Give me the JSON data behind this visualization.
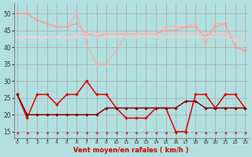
{
  "title": "",
  "xlabel": "Vent moyen/en rafales ( km/h )",
  "background_color": "#b2e0e0",
  "grid_color": "#aaaaaa",
  "ylim": [
    13,
    53
  ],
  "yticks": [
    15,
    20,
    25,
    30,
    35,
    40,
    45,
    50
  ],
  "x": [
    0,
    1,
    2,
    3,
    4,
    5,
    6,
    7,
    8,
    9,
    10,
    11,
    12,
    13,
    14,
    15,
    16,
    17,
    18,
    19,
    20,
    21,
    22,
    23
  ],
  "line_rafales_jagged": [
    26,
    19,
    26,
    26,
    23,
    26,
    26,
    30,
    26,
    26,
    22,
    19,
    19,
    19,
    22,
    22,
    15,
    15,
    26,
    26,
    22,
    26,
    26,
    22
  ],
  "line_moyen_jagged": [
    26,
    20,
    20,
    20,
    20,
    20,
    20,
    20,
    20,
    22,
    22,
    22,
    22,
    22,
    22,
    22,
    22,
    24,
    24,
    22,
    22,
    22,
    22,
    22
  ],
  "line_pink1": [
    50,
    50,
    48,
    47,
    46,
    46,
    50,
    41,
    35,
    35,
    39,
    44,
    44,
    44,
    44,
    46,
    46,
    46,
    47,
    41,
    47,
    47,
    40,
    39
  ],
  "line_pink2": [
    50,
    50,
    48,
    47,
    46,
    46,
    47,
    44,
    43,
    44,
    44,
    44,
    44,
    44,
    44,
    45,
    45,
    46,
    46,
    43,
    46,
    47,
    40,
    39
  ],
  "line_pink3": [
    43,
    43,
    43,
    43,
    43,
    43,
    44,
    44,
    44,
    44,
    44,
    44,
    44,
    44,
    44,
    44,
    44,
    44,
    44,
    44,
    44,
    44,
    43,
    43
  ],
  "line_pink4": [
    43,
    43,
    43,
    43,
    43,
    43,
    43,
    43,
    43,
    43,
    43,
    43,
    43,
    43,
    43,
    43,
    43,
    43,
    43,
    43,
    43,
    43,
    42,
    41
  ],
  "line_color_p1": "#ffaaaa",
  "line_color_p2": "#ff9999",
  "line_color_p3": "#ffbbbb",
  "line_color_p4": "#ffcccc",
  "line_color_rafales": "#dd0000",
  "line_color_moyen": "#880000",
  "arrow_color": "#cc0000",
  "xlabel_color": "#cc0000"
}
